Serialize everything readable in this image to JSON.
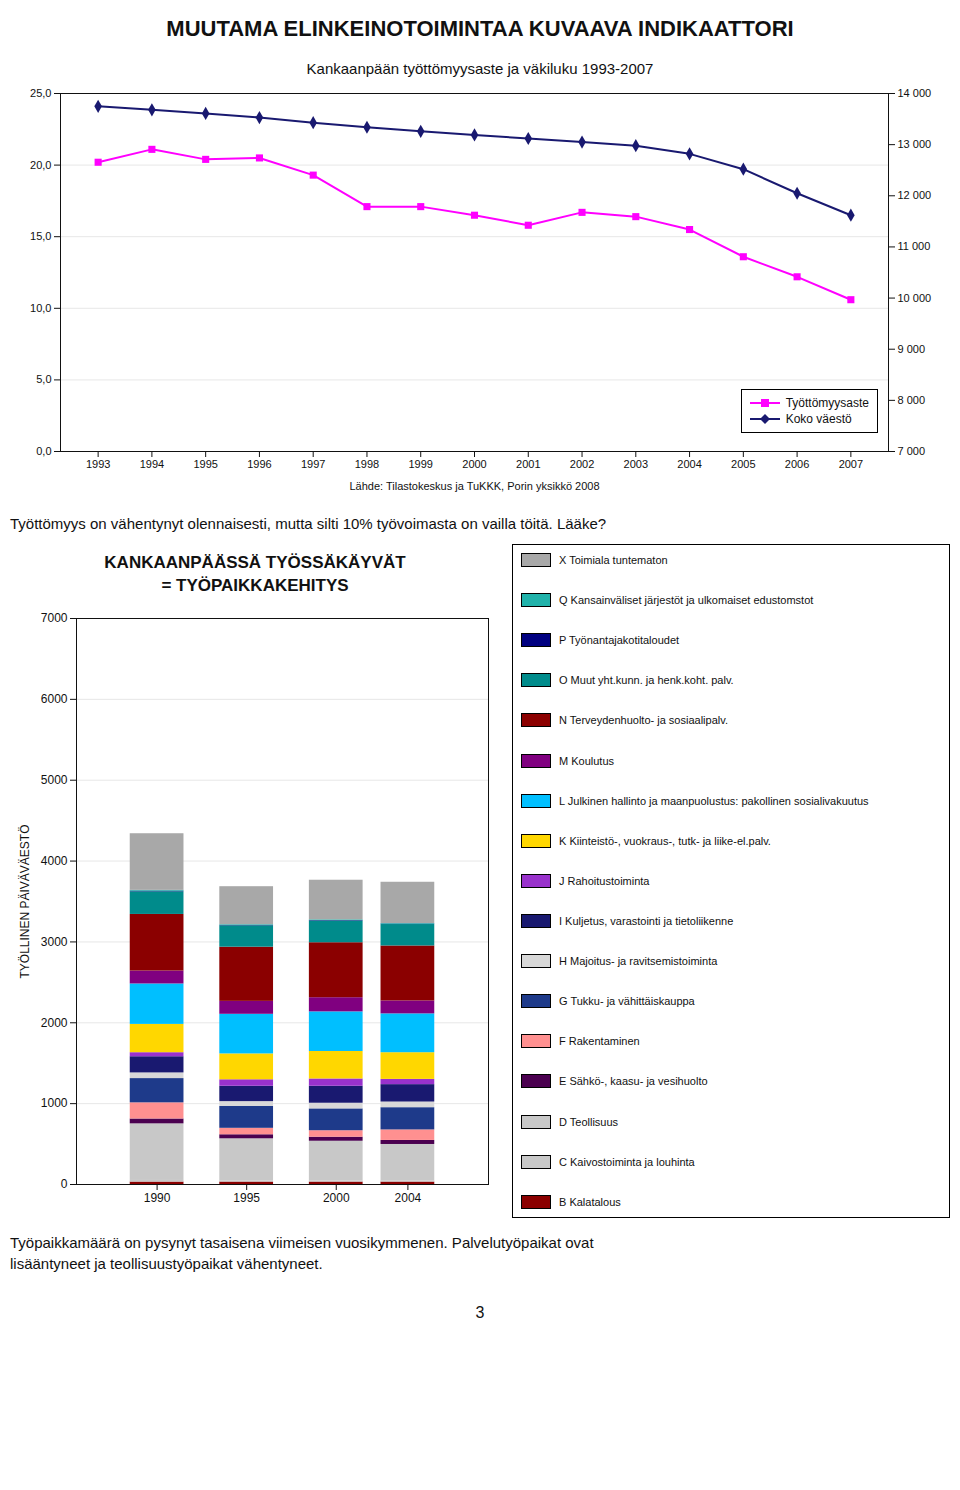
{
  "title": "MUUTAMA ELINKEINOTOIMINTAA KUVAAVA INDIKAATTORI",
  "annotations": [
    [
      "Työttömyys on vähentynyt olennaisesti, mutta silti 10% työvoimasta on vailla töitä. Lääke?"
    ],
    [
      "Työpaikkamäärä on pysynyt tasaisena viimeisen vuosikymmenen. Palvelutyöpaikat ovat",
      "lisääntyneet ja teollisuustyöpaikat vähentyneet."
    ]
  ],
  "page_number": "3",
  "chart_data": [
    {
      "type": "line",
      "title": "Kankaanpään  työttömyysaste ja väkiluku 1993-2007",
      "xlabel": "Lähde: Tilastokeskus ja TuKKK, Porin yksikkö 2008",
      "x": [
        1993,
        1994,
        1995,
        1996,
        1997,
        1998,
        1999,
        2000,
        2001,
        2002,
        2003,
        2004,
        2005,
        2006,
        2007
      ],
      "xlim": [
        1992.3,
        2007.7
      ],
      "xticks": [
        1993,
        1994,
        1995,
        1996,
        1997,
        1998,
        1999,
        2000,
        2001,
        2002,
        2003,
        2004,
        2005,
        2006,
        2007
      ],
      "ylim": [
        0,
        25
      ],
      "yticks": [
        {
          "value": 0,
          "label": "0,0"
        },
        {
          "value": 5,
          "label": "5,0"
        },
        {
          "value": 10,
          "label": "10,0"
        },
        {
          "value": 15,
          "label": "15,0"
        },
        {
          "value": 20,
          "label": "20,0"
        },
        {
          "value": 25,
          "label": "25,0"
        }
      ],
      "y2lim": [
        7000,
        14000
      ],
      "y2ticks": [
        {
          "value": 7000,
          "label": "7 000"
        },
        {
          "value": 8000,
          "label": "8 000"
        },
        {
          "value": 9000,
          "label": "9 000"
        },
        {
          "value": 10000,
          "label": "10 000"
        },
        {
          "value": 11000,
          "label": "11 000"
        },
        {
          "value": 12000,
          "label": "12 000"
        },
        {
          "value": 13000,
          "label": "13 000"
        },
        {
          "value": 14000,
          "label": "14 000"
        }
      ],
      "grid": true,
      "legend": "lower right",
      "series": [
        {
          "name": "Työttömyysaste",
          "color": "#FF00FF",
          "marker": "square",
          "values": [
            20.2,
            21.1,
            20.4,
            20.5,
            19.3,
            17.1,
            17.1,
            16.5,
            15.8,
            16.7,
            16.4,
            15.5,
            13.6,
            12.2,
            10.6
          ]
        },
        {
          "name": "Koko väestö",
          "color": "#191970",
          "marker": "diamond",
          "axis": "y2",
          "values": [
            13750,
            13680,
            13610,
            13530,
            13430,
            13340,
            13260,
            13190,
            13120,
            13050,
            12980,
            12820,
            12520,
            12050,
            11620
          ]
        }
      ]
    },
    {
      "type": "bar",
      "stacked": true,
      "title": "KANKAANPÄÄSSÄ TYÖSSÄKÄYVÄT",
      "subtitle": "= TYÖPAIKKAKEHITYS",
      "ylabel": "TYÖLLINEN PÄIVÄVÄESTÖ",
      "x": [
        1990,
        1995,
        2000,
        2004
      ],
      "xlim": [
        1985.5,
        2008.5
      ],
      "xticks": [
        1990,
        1995,
        2000,
        2004
      ],
      "ylim": [
        0,
        7000
      ],
      "yticks": [
        0,
        1000,
        2000,
        3000,
        4000,
        5000,
        6000,
        7000
      ],
      "grid": true,
      "legend": "right",
      "series": [
        {
          "name": "B Kalatalous",
          "color": "#8B0000",
          "values": [
            30,
            30,
            30,
            30
          ]
        },
        {
          "name": "C Kaivostoiminta ja louhinta",
          "color": "#c8c8c8",
          "values": [
            20,
            15,
            15,
            15
          ]
        },
        {
          "name": "D Teollisuus",
          "color": "#c8c8c8",
          "values": [
            700,
            520,
            490,
            450
          ]
        },
        {
          "name": "E Sähkö-, kaasu- ja vesihuolto",
          "color": "#4B0050",
          "values": [
            60,
            50,
            50,
            50
          ]
        },
        {
          "name": "F Rakentaminen",
          "color": "#FF9090",
          "values": [
            200,
            80,
            80,
            130
          ]
        },
        {
          "name": "G Tukku- ja vähittäiskauppa",
          "color": "#1e3a8a",
          "values": [
            300,
            270,
            270,
            275
          ]
        },
        {
          "name": "H Majoitus- ja ravitsemistoiminta",
          "color": "#d8d8d8",
          "values": [
            70,
            60,
            70,
            70
          ]
        },
        {
          "name": "I Kuljetus, varastointi ja tietoliikenne",
          "color": "#191970",
          "values": [
            200,
            190,
            210,
            215
          ]
        },
        {
          "name": "J Rahoitustoiminta",
          "color": "#9932CC",
          "values": [
            50,
            80,
            90,
            65
          ]
        },
        {
          "name": "K Kiinteistö-, vuokraus-, tutk- ja liike-el.palv.",
          "color": "#FFD700",
          "values": [
            350,
            320,
            340,
            330
          ]
        },
        {
          "name": "L Julkinen hallinto ja maanpuolustus: pakollinen sosialivakuutus",
          "color": "#00BFFF",
          "values": [
            500,
            490,
            490,
            480
          ]
        },
        {
          "name": "M Koulutus",
          "color": "#800080",
          "values": [
            160,
            160,
            175,
            160
          ]
        },
        {
          "name": "N Terveydenhuolto- ja sosiaalipalv.",
          "color": "#8B0000",
          "values": [
            700,
            670,
            680,
            680
          ]
        },
        {
          "name": "O Muut yht.kunn. ja henk.koht. palv.",
          "color": "#008B8B",
          "values": [
            280,
            265,
            270,
            265
          ]
        },
        {
          "name": "P Työnantajakotitaloudet",
          "color": "#000080",
          "values": [
            8,
            5,
            5,
            5
          ]
        },
        {
          "name": "Q Kansainväliset järjestöt ja ulkomaiset edustomstot",
          "color": "#20B2AA",
          "values": [
            10,
            8,
            8,
            8
          ]
        },
        {
          "name": "X Toimiala tuntematon",
          "color": "#a8a8a8",
          "values": [
            700,
            470,
            490,
            510
          ]
        }
      ]
    }
  ]
}
